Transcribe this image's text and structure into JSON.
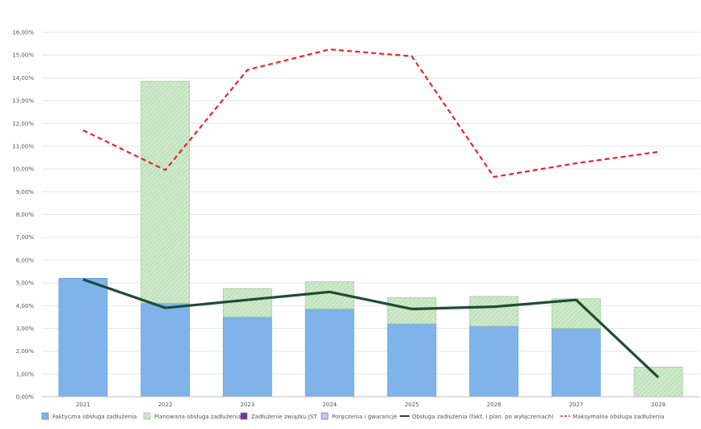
{
  "chart_data": {
    "type": "bar",
    "categories": [
      "2021",
      "2022",
      "2023",
      "2024",
      "2025",
      "2026",
      "2027",
      "2028"
    ],
    "ylim": [
      0,
      16
    ],
    "y_ticks": [
      "0,00%",
      "1,00%",
      "2,00%",
      "3,00%",
      "4,00%",
      "5,00%",
      "6,00%",
      "7,00%",
      "8,00%",
      "9,00%",
      "10,00%",
      "11,00%",
      "12,00%",
      "13,00%",
      "14,00%",
      "15,00%",
      "16,00%"
    ],
    "grid": true,
    "legend_position": "bottom",
    "stacked": true,
    "bar_series": [
      {
        "name": "Faktyczna obsługa zadłużenia",
        "color": "#7fb3ea",
        "hatched": false,
        "values": [
          5.2,
          4.1,
          3.5,
          3.85,
          3.2,
          3.1,
          3.0,
          0
        ]
      },
      {
        "name": "Planowana obsługa zadłużenia",
        "color": "#c6e6c2",
        "hatched": true,
        "values": [
          0,
          9.75,
          1.25,
          1.2,
          1.15,
          1.3,
          1.3,
          1.3
        ]
      },
      {
        "name": "Zadłużenie związku JST",
        "color": "#8b2a8e",
        "hatched": false,
        "values": [
          0,
          0,
          0,
          0,
          0,
          0,
          0,
          0
        ]
      },
      {
        "name": "Poręczenia i gwarancje",
        "color": "#c9c2ee",
        "hatched": false,
        "values": [
          0,
          0,
          0,
          0,
          0,
          0,
          0,
          0
        ]
      }
    ],
    "line_series": [
      {
        "name": "Obsługa zadłużenia (fakt. i plan. po wyłączeniach)",
        "color": "#1e4d33",
        "dashed": false,
        "values": [
          5.15,
          3.9,
          4.25,
          4.6,
          3.85,
          3.95,
          4.25,
          0.85
        ]
      },
      {
        "name": "Maksymalna obsługa zadłużenia",
        "color": "#e8242b",
        "dashed": true,
        "values": [
          11.7,
          9.95,
          14.35,
          15.25,
          14.95,
          9.65,
          10.25,
          10.75
        ]
      }
    ]
  }
}
